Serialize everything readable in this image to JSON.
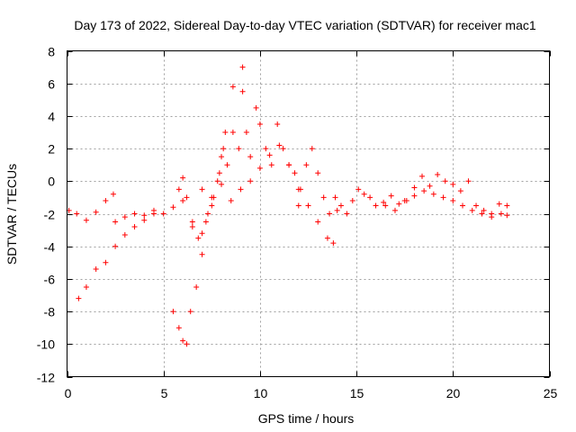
{
  "chart_data": {
    "type": "scatter",
    "title": "Day 173 of 2022, Sidereal Day-to-day VTEC variation (SDTVAR) for receiver mac1",
    "xlabel": "GPS time / hours",
    "ylabel": "SDTVAR / TECUs",
    "xlim": [
      0,
      25
    ],
    "ylim": [
      -12,
      8
    ],
    "xticks": [
      0,
      5,
      10,
      15,
      20,
      25
    ],
    "yticks": [
      -12,
      -10,
      -8,
      -6,
      -4,
      -2,
      0,
      2,
      4,
      6,
      8
    ],
    "grid": true,
    "marker": "+",
    "marker_color": "#ff0000",
    "series": [
      {
        "name": "SDTVAR",
        "x": [
          0.1,
          0.5,
          1.0,
          1.5,
          2.0,
          2.4,
          0.6,
          1.0,
          1.5,
          2.0,
          2.5,
          3.0,
          3.5,
          4.0,
          4.5,
          2.5,
          3.0,
          3.5,
          4.0,
          4.5,
          5.0,
          5.5,
          5.8,
          6.0,
          6.2,
          6.5,
          6.8,
          7.0,
          7.3,
          7.6,
          7.9,
          8.1,
          8.3,
          8.6,
          8.9,
          9.1,
          9.3,
          9.5,
          9.8,
          10.0,
          10.3,
          10.6,
          10.9,
          11.2,
          11.5,
          11.8,
          12.1,
          12.4,
          12.7,
          13.0,
          13.3,
          13.6,
          13.9,
          14.2,
          14.5,
          14.8,
          15.1,
          15.4,
          15.7,
          16.0,
          16.4,
          16.8,
          17.2,
          17.6,
          18.0,
          18.4,
          18.8,
          19.2,
          19.6,
          20.0,
          20.4,
          20.8,
          21.2,
          21.6,
          22.0,
          22.4,
          22.8,
          5.5,
          5.8,
          6.0,
          6.2,
          6.4,
          6.7,
          7.0,
          7.2,
          7.5,
          7.8,
          8.0,
          8.2,
          6.0,
          6.5,
          7.0,
          7.5,
          8.0,
          8.5,
          9.0,
          9.5,
          10.0,
          10.5,
          11.0,
          11.5,
          12.0,
          12.5,
          13.0,
          13.5,
          14.0,
          16.5,
          17.0,
          17.5,
          18.0,
          18.5,
          19.0,
          19.5,
          20.0,
          20.5,
          21.0,
          21.5,
          22.0,
          22.5,
          22.8,
          9.1,
          8.6,
          12.0,
          13.8
        ],
        "y": [
          -1.8,
          -2.0,
          -2.4,
          -1.9,
          -1.2,
          -0.8,
          -7.2,
          -6.5,
          -5.4,
          -5.0,
          -4.0,
          -3.3,
          -2.8,
          -2.4,
          -2.0,
          -2.5,
          -2.2,
          -2.0,
          -2.1,
          -1.8,
          -2.0,
          -1.6,
          -0.5,
          0.2,
          -1.0,
          -2.5,
          -3.5,
          -0.5,
          -2.0,
          -1.0,
          0.5,
          2.0,
          1.0,
          3.0,
          2.0,
          5.5,
          3.0,
          1.5,
          4.5,
          3.5,
          2.0,
          1.0,
          3.5,
          2.0,
          1.0,
          0.5,
          -0.5,
          1.0,
          2.0,
          0.5,
          -1.0,
          -2.0,
          -1.0,
          -1.5,
          -2.0,
          -1.2,
          -0.5,
          -0.8,
          -1.0,
          -1.5,
          -1.3,
          -0.9,
          -1.4,
          -1.2,
          -0.4,
          0.3,
          -0.3,
          0.4,
          0.0,
          -0.2,
          -0.6,
          0.0,
          -1.5,
          -1.8,
          -2.0,
          -1.4,
          -2.1,
          -8.0,
          -9.0,
          -9.8,
          -10.0,
          -8.0,
          -6.5,
          -4.5,
          -2.5,
          -1.0,
          0.0,
          1.5,
          3.0,
          -1.2,
          -2.8,
          -3.2,
          -1.5,
          -0.2,
          -1.2,
          -0.5,
          0.0,
          0.8,
          1.6,
          2.2,
          1.0,
          -0.5,
          -1.5,
          -2.5,
          -3.5,
          -1.8,
          -1.5,
          -1.8,
          -1.2,
          -0.9,
          -0.6,
          -0.8,
          -1.0,
          -1.2,
          -1.5,
          -1.8,
          -2.0,
          -2.2,
          -2.0,
          -1.5,
          7.0,
          5.8,
          -1.5,
          -3.8
        ]
      }
    ]
  }
}
